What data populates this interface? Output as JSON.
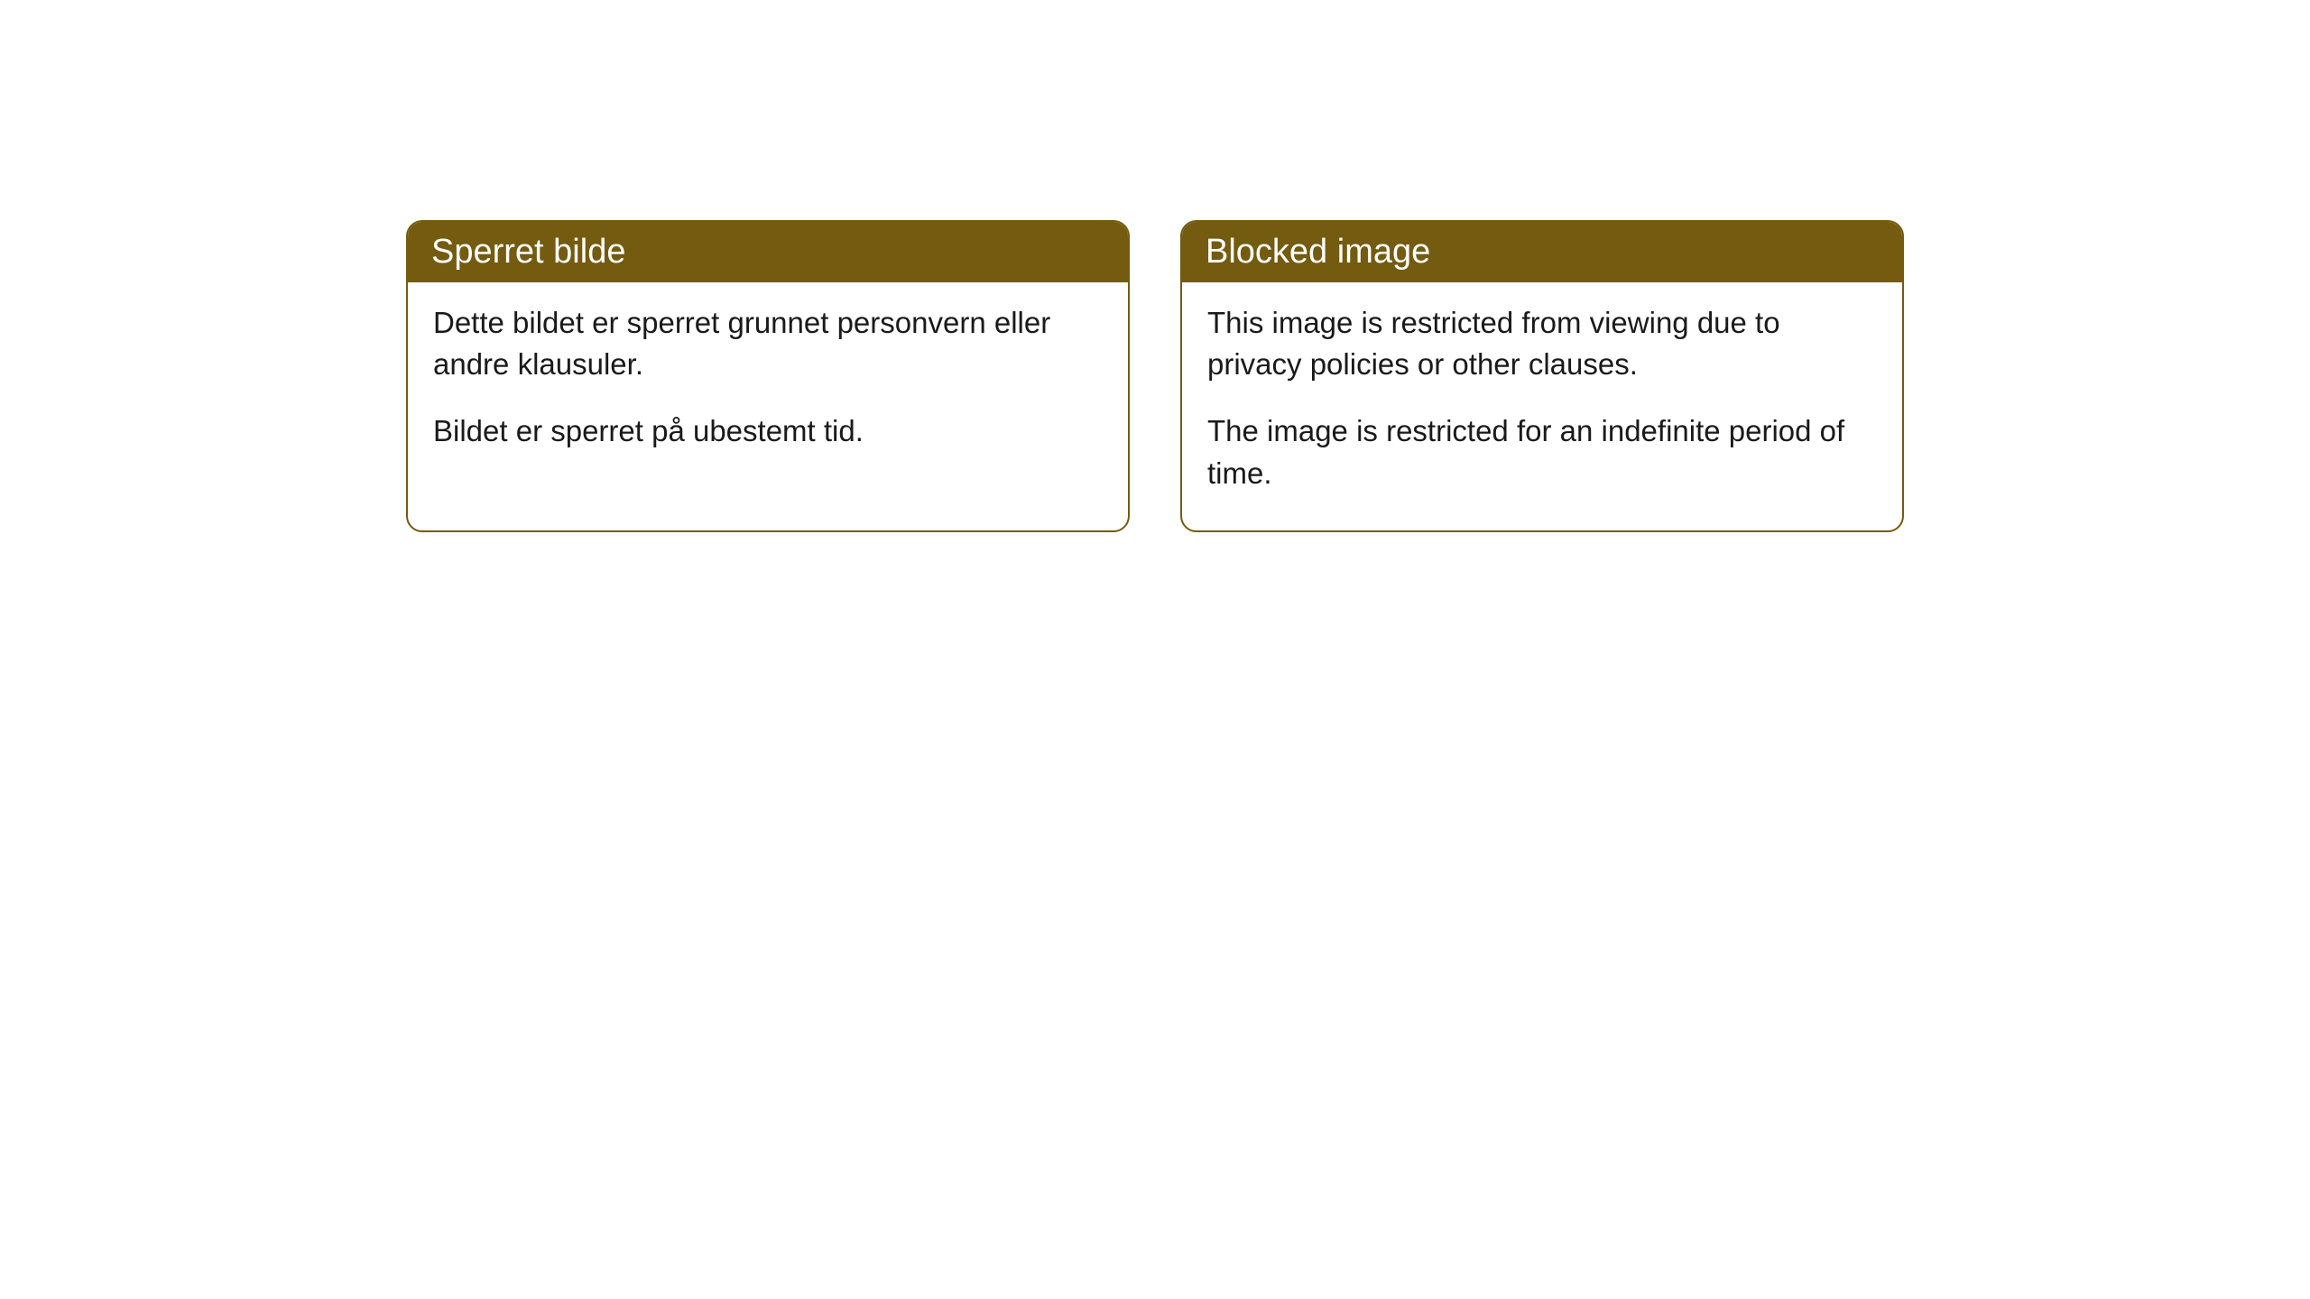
{
  "cards": [
    {
      "title": "Sperret bilde",
      "paragraph1": "Dette bildet er sperret grunnet personvern eller andre klausuler.",
      "paragraph2": "Bildet er sperret på ubestemt tid."
    },
    {
      "title": "Blocked image",
      "paragraph1": "This image is restricted from viewing due to privacy policies or other clauses.",
      "paragraph2": "The image is restricted for an indefinite period of time."
    }
  ],
  "styling": {
    "header_background": "#745b0f",
    "header_text_color": "#ffffff",
    "border_color": "#745b0f",
    "body_background": "#ffffff",
    "body_text_color": "#1a1a1a",
    "border_radius": 18,
    "header_font_size": 38,
    "body_font_size": 33
  }
}
